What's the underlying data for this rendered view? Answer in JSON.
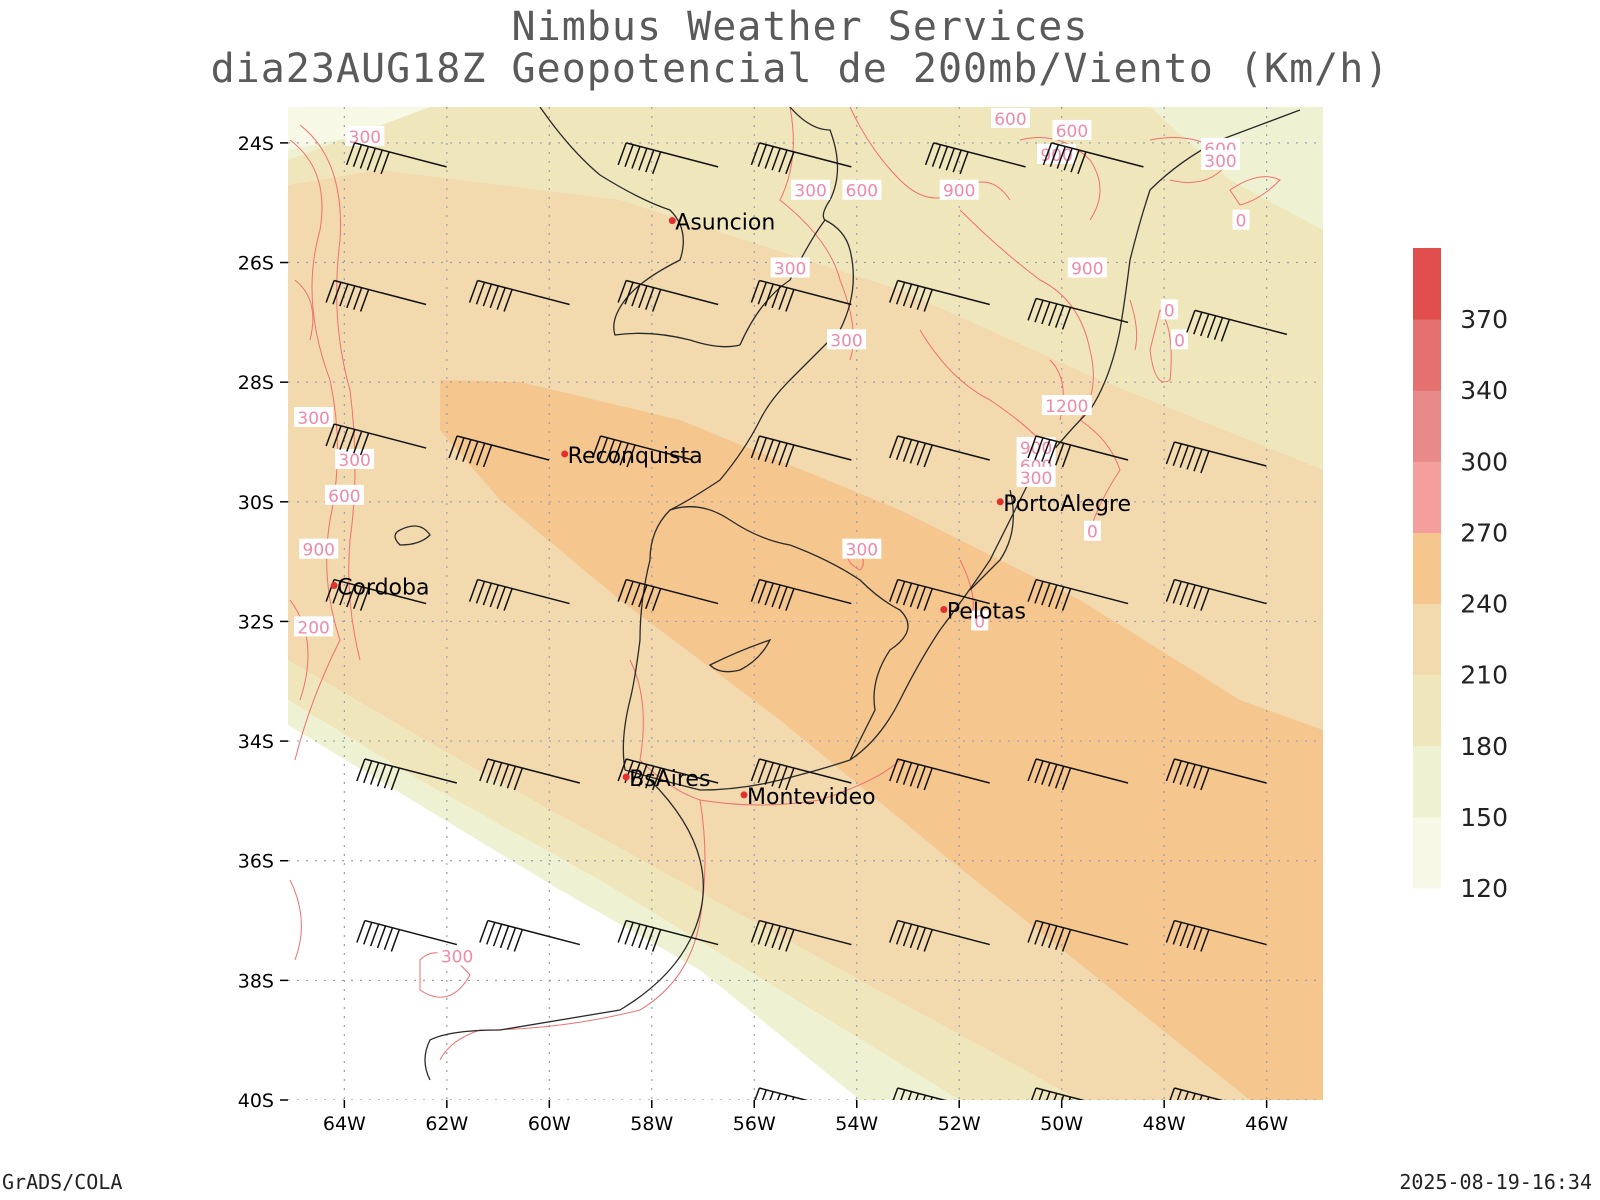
{
  "title": {
    "line1": "Nimbus Weather Services",
    "line2": "dia23AUG18Z Geopotencial de 200mb/Viento (Km/h)"
  },
  "footer": {
    "left": "GrADS/COLA",
    "right": "2025-08-19-16:34"
  },
  "axes": {
    "lat_labels": [
      "24S",
      "26S",
      "28S",
      "30S",
      "32S",
      "34S",
      "36S",
      "38S",
      "40S"
    ],
    "lon_labels": [
      "64W",
      "62W",
      "60W",
      "58W",
      "56W",
      "54W",
      "52W",
      "50W",
      "48W",
      "46W"
    ]
  },
  "colorbar": {
    "levels": [
      "120",
      "150",
      "180",
      "210",
      "240",
      "270",
      "300",
      "340",
      "370"
    ],
    "colors": [
      "#f7f9e6",
      "#eef2d2",
      "#f0e6bc",
      "#f2d9ae",
      "#f5c68e",
      "#f49e9e",
      "#e88a8a",
      "#e47070",
      "#e04e4e"
    ]
  },
  "cities": [
    {
      "name": "Asuncion",
      "lon": -57.6,
      "lat": -25.3
    },
    {
      "name": "Reconquista",
      "lon": -59.7,
      "lat": -29.2
    },
    {
      "name": "PortoAlegre",
      "lon": -51.2,
      "lat": -30.0
    },
    {
      "name": "Cordoba",
      "lon": -64.2,
      "lat": -31.4
    },
    {
      "name": "Pelotas",
      "lon": -52.3,
      "lat": -31.8
    },
    {
      "name": "BsAires",
      "lon": -58.5,
      "lat": -34.6
    },
    {
      "name": "Montevideo",
      "lon": -56.2,
      "lat": -34.9
    }
  ],
  "contour_labels": [
    {
      "text": "300",
      "lon": -63.6,
      "lat": -23.9
    },
    {
      "text": "300",
      "lon": -54.9,
      "lat": -24.8
    },
    {
      "text": "600",
      "lon": -53.9,
      "lat": -24.8
    },
    {
      "text": "900",
      "lon": -52.0,
      "lat": -24.8
    },
    {
      "text": "600",
      "lon": -49.8,
      "lat": -23.8
    },
    {
      "text": "900",
      "lon": -50.1,
      "lat": -24.2
    },
    {
      "text": "600",
      "lon": -51.0,
      "lat": -23.6
    },
    {
      "text": "600",
      "lon": -46.9,
      "lat": -24.1
    },
    {
      "text": "300",
      "lon": -46.9,
      "lat": -24.3
    },
    {
      "text": "0",
      "lon": -46.5,
      "lat": -25.3
    },
    {
      "text": "300",
      "lon": -55.3,
      "lat": -26.1
    },
    {
      "text": "900",
      "lon": -49.5,
      "lat": -26.1
    },
    {
      "text": "0",
      "lon": -47.9,
      "lat": -26.8
    },
    {
      "text": "0",
      "lon": -47.7,
      "lat": -27.3
    },
    {
      "text": "300",
      "lon": -54.2,
      "lat": -27.3
    },
    {
      "text": "1200",
      "lon": -49.9,
      "lat": -28.4
    },
    {
      "text": "300",
      "lon": -64.6,
      "lat": -28.6
    },
    {
      "text": "300",
      "lon": -63.8,
      "lat": -29.3
    },
    {
      "text": "900",
      "lon": -50.5,
      "lat": -29.1
    },
    {
      "text": "600",
      "lon": -50.5,
      "lat": -29.4
    },
    {
      "text": "300",
      "lon": -50.5,
      "lat": -29.6
    },
    {
      "text": "600",
      "lon": -64.0,
      "lat": -29.9
    },
    {
      "text": "0",
      "lon": -49.4,
      "lat": -30.5
    },
    {
      "text": "900",
      "lon": -64.5,
      "lat": -30.8
    },
    {
      "text": "300",
      "lon": -53.9,
      "lat": -30.8
    },
    {
      "text": "0",
      "lon": -51.6,
      "lat": -32.0
    },
    {
      "text": "200",
      "lon": -64.6,
      "lat": -32.1
    },
    {
      "text": "300",
      "lon": -61.8,
      "lat": -37.6
    }
  ],
  "wind_barbs": [
    {
      "lon": -63.8,
      "lat": -24.0
    },
    {
      "lon": -58.5,
      "lat": -24.0
    },
    {
      "lon": -55.9,
      "lat": -24.0
    },
    {
      "lon": -52.5,
      "lat": -24.0
    },
    {
      "lon": -50.2,
      "lat": -24.0
    },
    {
      "lon": -64.2,
      "lat": -26.3
    },
    {
      "lon": -61.4,
      "lat": -26.3
    },
    {
      "lon": -58.5,
      "lat": -26.3
    },
    {
      "lon": -55.9,
      "lat": -26.3
    },
    {
      "lon": -53.2,
      "lat": -26.3
    },
    {
      "lon": -50.5,
      "lat": -26.6
    },
    {
      "lon": -47.4,
      "lat": -26.8
    },
    {
      "lon": -64.2,
      "lat": -28.7
    },
    {
      "lon": -61.8,
      "lat": -28.9
    },
    {
      "lon": -59.0,
      "lat": -28.9
    },
    {
      "lon": -55.9,
      "lat": -28.9
    },
    {
      "lon": -53.2,
      "lat": -28.9
    },
    {
      "lon": -50.5,
      "lat": -28.9
    },
    {
      "lon": -47.8,
      "lat": -29.0
    },
    {
      "lon": -64.2,
      "lat": -31.3
    },
    {
      "lon": -61.4,
      "lat": -31.3
    },
    {
      "lon": -58.5,
      "lat": -31.3
    },
    {
      "lon": -55.9,
      "lat": -31.3
    },
    {
      "lon": -53.2,
      "lat": -31.3
    },
    {
      "lon": -50.5,
      "lat": -31.3
    },
    {
      "lon": -47.8,
      "lat": -31.3
    },
    {
      "lon": -63.6,
      "lat": -34.3
    },
    {
      "lon": -61.2,
      "lat": -34.3
    },
    {
      "lon": -58.5,
      "lat": -34.3
    },
    {
      "lon": -55.9,
      "lat": -34.3
    },
    {
      "lon": -53.2,
      "lat": -34.3
    },
    {
      "lon": -50.5,
      "lat": -34.3
    },
    {
      "lon": -47.8,
      "lat": -34.3
    },
    {
      "lon": -63.6,
      "lat": -37.0
    },
    {
      "lon": -61.2,
      "lat": -37.0
    },
    {
      "lon": -58.5,
      "lat": -37.0
    },
    {
      "lon": -55.9,
      "lat": -37.0
    },
    {
      "lon": -53.2,
      "lat": -37.0
    },
    {
      "lon": -50.5,
      "lat": -37.0
    },
    {
      "lon": -47.8,
      "lat": -37.0
    },
    {
      "lon": -55.9,
      "lat": -39.8
    },
    {
      "lon": -53.2,
      "lat": -39.8
    },
    {
      "lon": -50.5,
      "lat": -39.8
    },
    {
      "lon": -47.8,
      "lat": -39.8
    }
  ]
}
